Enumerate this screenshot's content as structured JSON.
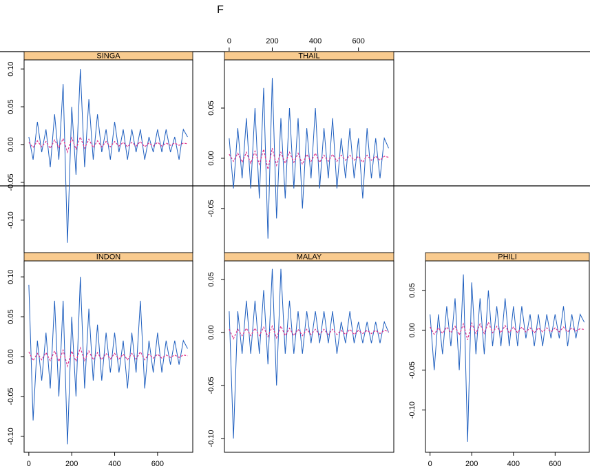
{
  "title": "F",
  "chart_data": [
    {
      "type": "line",
      "title": "SINGA",
      "x": [
        0,
        20,
        40,
        60,
        80,
        100,
        120,
        140,
        160,
        180,
        200,
        220,
        240,
        260,
        280,
        300,
        320,
        340,
        360,
        380,
        400,
        420,
        440,
        460,
        480,
        500,
        520,
        540,
        560,
        580,
        600,
        620,
        640,
        660,
        680,
        700,
        720,
        740
      ],
      "series": [
        {
          "color": "#1f5fbf",
          "values": [
            0.01,
            -0.02,
            0.03,
            -0.01,
            0.02,
            -0.03,
            0.04,
            -0.02,
            0.08,
            -0.13,
            0.05,
            -0.04,
            0.1,
            -0.03,
            0.06,
            -0.02,
            0.04,
            -0.01,
            0.02,
            -0.02,
            0.03,
            -0.01,
            0.02,
            -0.02,
            0.02,
            -0.01,
            0.02,
            -0.02,
            0.01,
            -0.01,
            0.02,
            -0.01,
            0.02,
            -0.01,
            0.01,
            -0.02,
            0.02,
            0.01
          ]
        },
        {
          "color": "#e0308a",
          "values": [
            0.003,
            -0.004,
            0.005,
            -0.003,
            0.004,
            -0.005,
            0.006,
            -0.004,
            0.008,
            -0.01,
            0.009,
            -0.006,
            0.01,
            -0.005,
            0.007,
            -0.004,
            0.005,
            -0.003,
            0.004,
            -0.003,
            0.004,
            -0.002,
            0.003,
            -0.003,
            0.003,
            -0.002,
            0.004,
            -0.003,
            0.002,
            -0.002,
            0.003,
            -0.002,
            0.002,
            -0.001,
            0.002,
            -0.001,
            0.002,
            0.001
          ]
        }
      ],
      "xlim": [
        -22,
        764
      ],
      "ylim": [
        -0.143,
        0.112
      ],
      "yticks": [
        {
          "value": -0.1,
          "label": "-0.10"
        },
        -0.05,
        {
          "value": 0,
          "label": "0.00"
        },
        0.05,
        {
          "value": 0.1,
          "label": "0.10"
        }
      ]
    },
    {
      "type": "line",
      "title": "THAIL",
      "x": [
        0,
        20,
        40,
        60,
        80,
        100,
        120,
        140,
        160,
        180,
        200,
        220,
        240,
        260,
        280,
        300,
        320,
        340,
        360,
        380,
        400,
        420,
        440,
        460,
        480,
        500,
        520,
        540,
        560,
        580,
        600,
        620,
        640,
        660,
        680,
        700,
        720,
        740
      ],
      "series": [
        {
          "color": "#1f5fbf",
          "values": [
            0.02,
            -0.03,
            0.03,
            -0.02,
            0.04,
            -0.03,
            0.05,
            -0.04,
            0.07,
            -0.08,
            0.08,
            -0.06,
            0.04,
            -0.04,
            0.05,
            -0.03,
            0.04,
            -0.05,
            0.03,
            -0.02,
            0.05,
            -0.03,
            0.03,
            -0.02,
            0.04,
            -0.03,
            0.02,
            -0.02,
            0.03,
            -0.02,
            0.02,
            -0.04,
            0.03,
            -0.02,
            0.02,
            -0.02,
            0.02,
            0.01
          ]
        },
        {
          "color": "#e0308a",
          "values": [
            0.004,
            -0.003,
            0.005,
            -0.004,
            0.006,
            -0.005,
            0.007,
            -0.006,
            0.009,
            -0.011,
            0.01,
            -0.007,
            0.006,
            -0.005,
            0.006,
            -0.004,
            0.005,
            -0.006,
            0.004,
            -0.003,
            0.005,
            -0.004,
            0.003,
            -0.003,
            0.004,
            -0.003,
            0.003,
            -0.002,
            0.003,
            -0.002,
            0.002,
            -0.004,
            0.003,
            -0.002,
            0.002,
            -0.002,
            0.002,
            0.001
          ]
        }
      ],
      "xlim": [
        -22,
        764
      ],
      "ylim": [
        -0.094,
        0.098
      ],
      "xaxis": "top",
      "xticks": [
        0,
        200,
        400,
        600
      ],
      "yticks": [
        -0.05,
        {
          "value": 0,
          "label": "0.00"
        },
        0.05
      ]
    },
    {
      "type": "line",
      "title": "INDON",
      "x": [
        0,
        20,
        40,
        60,
        80,
        100,
        120,
        140,
        160,
        180,
        200,
        220,
        240,
        260,
        280,
        300,
        320,
        340,
        360,
        380,
        400,
        420,
        440,
        460,
        480,
        500,
        520,
        540,
        560,
        580,
        600,
        620,
        640,
        660,
        680,
        700,
        720,
        740
      ],
      "series": [
        {
          "color": "#1f5fbf",
          "values": [
            0.09,
            -0.08,
            0.02,
            -0.03,
            0.03,
            -0.04,
            0.07,
            -0.05,
            0.07,
            -0.11,
            0.05,
            -0.05,
            0.1,
            -0.04,
            0.06,
            -0.03,
            0.04,
            -0.03,
            0.03,
            -0.02,
            0.03,
            -0.02,
            0.02,
            -0.04,
            0.03,
            -0.02,
            0.07,
            -0.04,
            0.02,
            -0.02,
            0.03,
            -0.02,
            0.02,
            -0.01,
            0.02,
            -0.01,
            0.02,
            0.01
          ]
        },
        {
          "color": "#e0308a",
          "values": [
            0.006,
            -0.005,
            0.004,
            -0.004,
            0.005,
            -0.005,
            0.007,
            -0.006,
            0.008,
            -0.012,
            0.007,
            -0.006,
            0.011,
            -0.005,
            0.007,
            -0.004,
            0.005,
            -0.004,
            0.004,
            -0.003,
            0.004,
            -0.003,
            0.003,
            -0.004,
            0.004,
            -0.003,
            0.006,
            -0.004,
            0.003,
            -0.002,
            0.003,
            -0.002,
            0.002,
            -0.001,
            0.002,
            -0.001,
            0.002,
            0.001
          ]
        }
      ],
      "xlim": [
        -22,
        764
      ],
      "ylim": [
        -0.12,
        0.12
      ],
      "xaxis": "bottom",
      "xticks": [
        0,
        200,
        400,
        600
      ],
      "yticks": [
        {
          "value": -0.1,
          "label": "-0.10"
        },
        -0.05,
        {
          "value": 0,
          "label": "0.00"
        },
        0.05,
        {
          "value": 0.1,
          "label": "0.10"
        }
      ]
    },
    {
      "type": "line",
      "title": "MALAY",
      "x": [
        0,
        20,
        40,
        60,
        80,
        100,
        120,
        140,
        160,
        180,
        200,
        220,
        240,
        260,
        280,
        300,
        320,
        340,
        360,
        380,
        400,
        420,
        440,
        460,
        480,
        500,
        520,
        540,
        560,
        580,
        600,
        620,
        640,
        660,
        680,
        700,
        720,
        740
      ],
      "series": [
        {
          "color": "#1f5fbf",
          "values": [
            0.02,
            -0.1,
            0.02,
            -0.02,
            0.03,
            -0.02,
            0.03,
            -0.02,
            0.04,
            -0.03,
            0.06,
            -0.05,
            0.06,
            -0.02,
            0.03,
            -0.02,
            0.02,
            -0.02,
            0.02,
            -0.01,
            0.02,
            -0.01,
            0.02,
            -0.01,
            0.02,
            -0.02,
            0.01,
            -0.01,
            0.02,
            -0.01,
            0.01,
            -0.01,
            0.01,
            -0.01,
            0.01,
            -0.01,
            0.01,
            0.0
          ]
        },
        {
          "color": "#e0308a",
          "values": [
            0.003,
            -0.006,
            0.003,
            -0.003,
            0.004,
            -0.003,
            0.004,
            -0.003,
            0.005,
            -0.004,
            0.006,
            -0.005,
            0.006,
            -0.003,
            0.004,
            -0.003,
            0.003,
            -0.003,
            0.003,
            -0.002,
            0.003,
            -0.002,
            0.003,
            -0.002,
            0.003,
            -0.002,
            0.002,
            -0.002,
            0.003,
            -0.002,
            0.002,
            -0.001,
            0.002,
            -0.001,
            0.002,
            -0.001,
            0.002,
            0.001
          ]
        }
      ],
      "xlim": [
        -22,
        764
      ],
      "ylim": [
        -0.113,
        0.0675
      ],
      "yticks": [
        {
          "value": -0.1,
          "label": "-0.10"
        },
        -0.05,
        {
          "value": 0,
          "label": "0.00"
        },
        0.05
      ]
    },
    {
      "type": "line",
      "title": "PHILI",
      "x": [
        0,
        20,
        40,
        60,
        80,
        100,
        120,
        140,
        160,
        180,
        200,
        220,
        240,
        260,
        280,
        300,
        320,
        340,
        360,
        380,
        400,
        420,
        440,
        460,
        480,
        500,
        520,
        540,
        560,
        580,
        600,
        620,
        640,
        660,
        680,
        700,
        720,
        740
      ],
      "series": [
        {
          "color": "#1f5fbf",
          "values": [
            0.02,
            -0.05,
            0.02,
            -0.03,
            0.03,
            -0.02,
            0.04,
            -0.05,
            0.07,
            -0.14,
            0.06,
            -0.03,
            0.04,
            -0.03,
            0.05,
            -0.02,
            0.03,
            -0.02,
            0.04,
            -0.02,
            0.03,
            -0.02,
            0.03,
            -0.01,
            0.02,
            -0.02,
            0.02,
            -0.02,
            0.02,
            -0.01,
            0.02,
            -0.01,
            0.03,
            -0.02,
            0.02,
            -0.01,
            0.02,
            0.01
          ]
        },
        {
          "color": "#e0308a",
          "values": [
            0.004,
            -0.005,
            0.003,
            -0.004,
            0.004,
            -0.003,
            0.005,
            -0.006,
            0.008,
            -0.012,
            0.009,
            -0.004,
            0.008,
            -0.004,
            0.01,
            -0.003,
            0.005,
            -0.003,
            0.006,
            -0.003,
            0.004,
            -0.003,
            0.004,
            -0.002,
            0.003,
            -0.003,
            0.003,
            -0.002,
            0.003,
            -0.002,
            0.003,
            -0.002,
            0.004,
            -0.002,
            0.003,
            -0.001,
            0.002,
            0.001
          ]
        }
      ],
      "xlim": [
        -22,
        764
      ],
      "ylim": [
        -0.153,
        0.087
      ],
      "xaxis": "bottom",
      "xticks": [
        0,
        200,
        400,
        600
      ],
      "yticks": [
        {
          "value": -0.1,
          "label": "-0.10"
        },
        -0.05,
        {
          "value": 0,
          "label": "0.00"
        },
        0.05
      ]
    }
  ]
}
